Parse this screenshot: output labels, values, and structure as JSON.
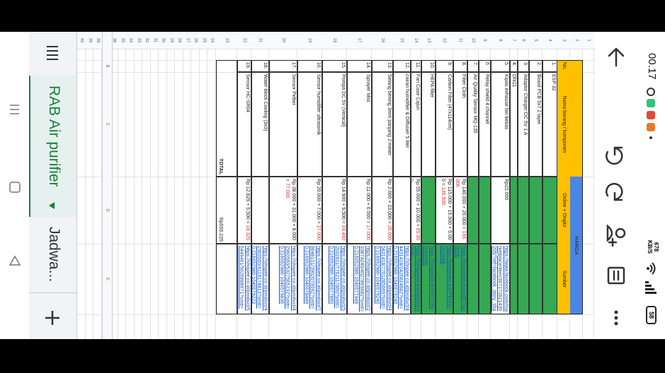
{
  "status_bar": {
    "time": "00.17",
    "speed": "678",
    "speed_unit": "KB/S",
    "battery": "58"
  },
  "sheet": {
    "column_headers": [
      "B",
      "C",
      "D",
      "E"
    ],
    "row_headers": [
      1,
      2,
      3,
      4,
      5,
      6,
      7,
      8,
      9,
      10,
      11,
      12,
      13,
      14,
      15,
      16,
      17,
      18,
      19,
      20,
      21,
      22,
      23,
      24,
      25,
      26,
      27,
      28,
      29,
      30,
      31,
      32,
      33,
      34,
      35,
      36,
      37,
      38,
      39,
      40
    ],
    "group_header": "HARGA",
    "columns": [
      "No.",
      "Nama barang / komponen",
      "Online + Ongkir",
      "Sumber"
    ],
    "rows": [
      {
        "no": "1.",
        "name": "ESP 32"
      },
      {
        "no": "2.",
        "name": "Board PCB 5x7 2 layer"
      },
      {
        "no": "3.",
        "name": "Adaptor Charger DC 5V 1 A"
      },
      {
        "no": "4.",
        "name": "Dht11"
      },
      {
        "no": "5.",
        "name": "Kipas exhause fan bekas",
        "price": "Rp22.000",
        "link": "https://www.facebook.com/marketplace/item/367172821435205/?ref=facebook_story_share"
      },
      {
        "no": "6.",
        "name": "Relay shield 4 channel"
      },
      {
        "no": "7.",
        "name": "Air Quality Sensor MQ-135"
      },
      {
        "no": "8.",
        "name": "Filter Cloth",
        "price": "Rp 140.000 + 26.000 = ",
        "total": "166.000",
        "link": "https://tokopedia.link/a8KTSci8Rob"
      },
      {
        "no": "9.",
        "name": "Carbon Filter (47x114cm)",
        "price": "Rp 115.000 + 15.500 + 5.000 = ",
        "total": "135.500",
        "link": "https://tokopedia.link/PEUnDUCvHbb"
      },
      {
        "no": "10.",
        "name": "HEPA filter",
        "link": "https://tokopedia.link/mXY9wOWJSbb"
      },
      {
        "no": "11.",
        "name": "Fan Case Cajun",
        "price": "Rp 55.000 + 10.000 = ",
        "total": "65.000",
        "link": "https://tokopedia.link/qjeUxDo5kbb"
      },
      {
        "no": "12.",
        "name": "cairan humidifier & Diffusier 5 liter",
        "link": "https://shopee.co.id/product/44431418/2426824682?smtt=0.216052986-1646579240"
      },
      {
        "no": "13.",
        "name": "Selang bening 3mm panjang 2 meter",
        "price": "Rp 2.000 + 23.000 = ",
        "total": "25.000",
        "link": "https://shopee.co.id/product/45431418/7761285669?smtt=0.216052986-1646579240"
      },
      {
        "no": "14.",
        "name": "Sprayer Mist",
        "price": "Rp 11.000 + 6.000 = ",
        "total": "17.000",
        "link": "https://shopee.co.id/product/233874240/4027865682?smtt=0.216052986-1646577449"
      },
      {
        "no": "15.",
        "name": "Pompa DC 5V (Vertical)",
        "price": "Rp 14.900 + 9.500 = ",
        "total": "24.400",
        "link": "https://shopee.co.id/product/52032811/7762117860?smtt=0.216052986-1646577860"
      },
      {
        "no": "16.",
        "name": "Sensor humidifier ultrasonik",
        "price": "Rp 20.000 + 7.000 = ",
        "total": "27.000",
        "link": "https://shopee.co.id/product/78648101/3902079592?smtt=0.216052986-1646578449"
      },
      {
        "no": "17.",
        "name": "Sensor Peltier",
        "price": "Rp 38.000 + 31.000 + 8.000 = ",
        "total": "77.000",
        "link": "https://shopee.co.id/product/42960560/5327565232?smtt=0.216052986-1646579836"
      },
      {
        "no": "18.",
        "name": "Water block Cooling (3x3)",
        "link": "https://shopee.co.id/product/42960560/4119174413?smtt=0.216052986-1646579223"
      },
      {
        "no": "19.",
        "name": "Sensor HC-SR04",
        "price": "Rp 12.825 + 5.500 = ",
        "total": "18.325",
        "link": "https://shopee.co.id/product/56449461/5626888671?smtt=0.216052986-1646579430"
      }
    ],
    "total_label": "TOTAL",
    "total_value": "Rp555.225"
  },
  "tabs": [
    "RAB Air purifier",
    "Jadwa..."
  ]
}
